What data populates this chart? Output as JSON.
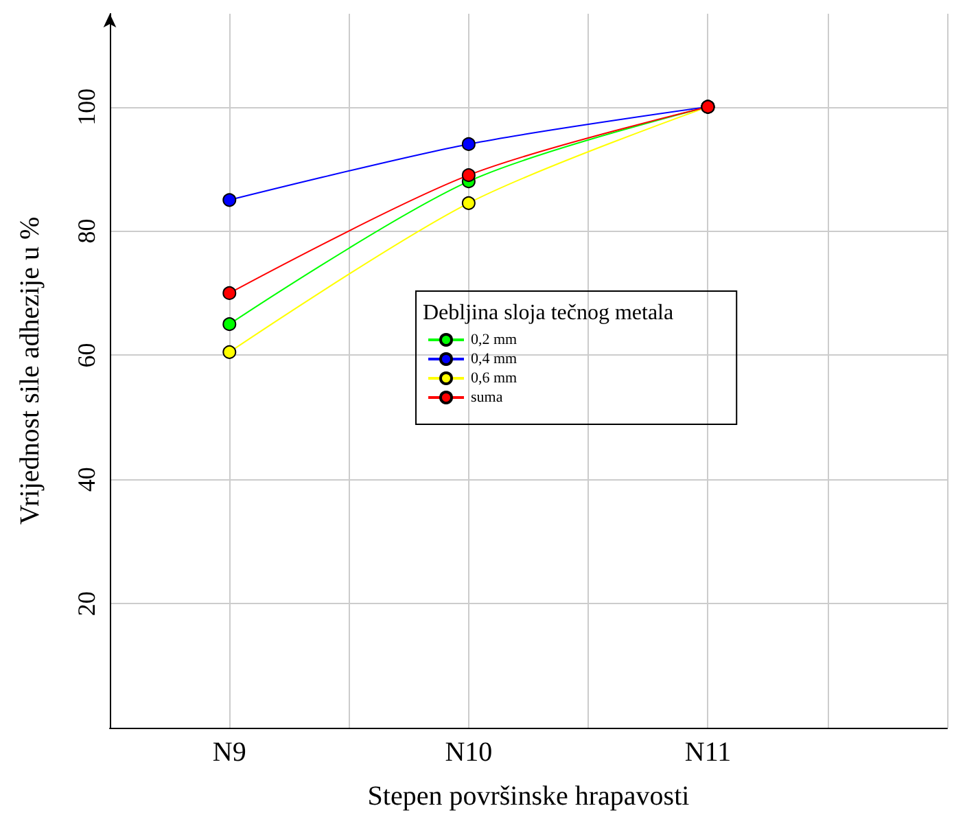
{
  "chart_data": {
    "type": "line",
    "xlabel": "Stepen površinske hrapavosti",
    "ylabel": "Vrijednost sile adhezije u %",
    "legend_title": "Debljina sloja tečnog metala",
    "categories": [
      null,
      "N9",
      null,
      "N10",
      null,
      "N11",
      null,
      null
    ],
    "series": [
      {
        "name": "0,2 mm",
        "color": "#00ff00",
        "values": [
          null,
          65,
          null,
          88,
          null,
          100,
          null,
          null
        ]
      },
      {
        "name": "0,4 mm",
        "color": "#0000ff",
        "values": [
          null,
          85,
          null,
          94,
          null,
          100,
          null,
          null
        ]
      },
      {
        "name": "0,6 mm",
        "color": "#ffff00",
        "values": [
          null,
          60.5,
          null,
          84.5,
          null,
          100,
          null,
          null
        ]
      },
      {
        "name": "suma",
        "color": "#ff0000",
        "values": [
          null,
          70,
          null,
          89,
          null,
          100,
          null,
          null
        ]
      }
    ],
    "ylim": [
      0,
      115
    ],
    "yticks": [
      20,
      40,
      60,
      80,
      100
    ],
    "grid": true,
    "legend": "center",
    "marker": "circle",
    "line_style": "solid"
  }
}
